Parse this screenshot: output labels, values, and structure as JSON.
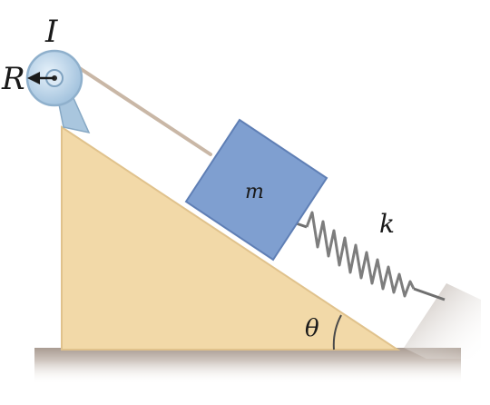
{
  "labels": {
    "moment_of_inertia": "I",
    "radius": "R",
    "mass": "m",
    "spring_constant": "k",
    "angle": "θ"
  },
  "colors": {
    "incline": "#f2d9a8",
    "incline_edge": "#e0c28c",
    "block": "#7f9fd0",
    "block_shadow": "#5f7fb5",
    "pulley": "#b9d4ea",
    "pulley_edge": "#8fb0cc",
    "ground": "#b8aaa0",
    "cord": "#c9b7a6",
    "spring": "#7d7d7d",
    "wall": "#bdb3ab"
  }
}
